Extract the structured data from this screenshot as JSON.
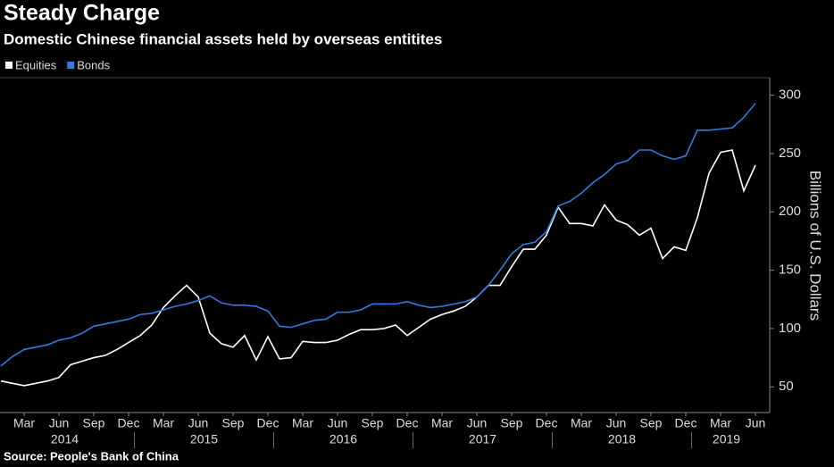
{
  "chart_data": {
    "type": "line",
    "title": "Steady Charge",
    "subtitle": "Domestic Chinese financial assets held by overseas entitites",
    "source": "Source: People's Bank of China",
    "y_label": "Billions of U.S. Dollars",
    "categories": [
      null,
      null,
      "Mar",
      null,
      null,
      "Jun",
      null,
      null,
      "Sep",
      null,
      null,
      "Dec",
      null,
      null,
      "Mar",
      null,
      null,
      "Jun",
      null,
      null,
      "Sep",
      null,
      null,
      "Dec",
      null,
      null,
      "Mar",
      null,
      null,
      "Jun",
      null,
      null,
      "Sep",
      null,
      null,
      "Dec",
      null,
      null,
      "Mar",
      null,
      null,
      "Jun",
      null,
      null,
      "Sep",
      null,
      null,
      "Dec",
      null,
      null,
      "Mar",
      null,
      null,
      "Jun",
      null,
      null,
      "Sep",
      null,
      null,
      "Dec",
      null,
      null,
      "Mar",
      null,
      null,
      "Jun"
    ],
    "years": [
      "2014",
      "2015",
      "2016",
      "2017",
      "2018",
      "2019"
    ],
    "series": [
      {
        "name": "Equities",
        "color": "#ffffff",
        "values": [
          55,
          53,
          51,
          53,
          55,
          58,
          69,
          72,
          75,
          77,
          82,
          88,
          94,
          103,
          118,
          128,
          137,
          127,
          96,
          87,
          84,
          94,
          73,
          93,
          74,
          75,
          89,
          88,
          88,
          90,
          95,
          99,
          99,
          100,
          103,
          94,
          101,
          108,
          112,
          115,
          119,
          127,
          137,
          137,
          153,
          168,
          168,
          180,
          204,
          190,
          190,
          188,
          206,
          193,
          189,
          180,
          186,
          160,
          170,
          167,
          195,
          233,
          251,
          253,
          218,
          240
        ]
      },
      {
        "name": "Bonds",
        "color": "#2f7be0",
        "values": [
          68,
          76,
          82,
          84,
          86,
          90,
          92,
          96,
          102,
          104,
          106,
          108,
          112,
          113,
          116,
          119,
          121,
          124,
          128,
          122,
          120,
          120,
          119,
          115,
          102,
          101,
          104,
          107,
          108,
          114,
          114,
          116,
          121,
          121,
          121,
          123,
          120,
          118,
          119,
          121,
          123,
          127,
          137,
          150,
          164,
          172,
          174,
          183,
          205,
          209,
          216,
          225,
          232,
          241,
          244,
          253,
          253,
          248,
          245,
          248,
          270,
          270,
          271,
          272,
          281,
          293
        ]
      }
    ],
    "ylim": [
      28,
      315
    ],
    "yticks": [
      50,
      100,
      150,
      200,
      250,
      300
    ],
    "grid": false,
    "legend": "top-left"
  }
}
